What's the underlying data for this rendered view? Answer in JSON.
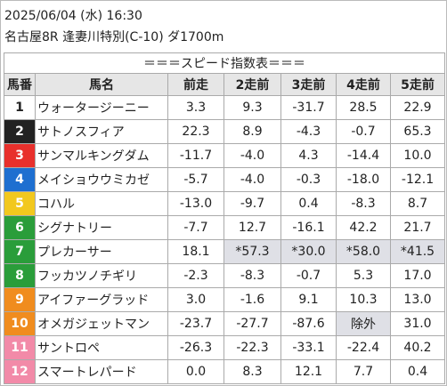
{
  "header": {
    "date": "2025/06/04 (水) 16:30",
    "race": "名古屋8R 逢妻川特別(C-10) ダ1700m"
  },
  "table": {
    "title": "＝＝＝スピード指数表＝＝＝",
    "columns": [
      "馬番",
      "馬名",
      "前走",
      "2走前",
      "3走前",
      "4走前",
      "5走前"
    ],
    "rows": [
      [
        "1",
        "ウォータージーニー",
        "3.3",
        "9.3",
        "-31.7",
        "28.5",
        "22.9"
      ],
      [
        "2",
        "サトノスフィア",
        "22.3",
        "8.9",
        "-4.3",
        "-0.7",
        "65.3"
      ],
      [
        "3",
        "サンマルキングダム",
        "-11.7",
        "-4.0",
        "4.3",
        "-14.4",
        "10.0"
      ],
      [
        "4",
        "メイショウウミカゼ",
        "-5.7",
        "-4.0",
        "-0.3",
        "-18.0",
        "-12.1"
      ],
      [
        "5",
        "コハル",
        "-13.0",
        "-9.7",
        "0.4",
        "-8.3",
        "8.7"
      ],
      [
        "6",
        "シグナトリー",
        "-7.7",
        "12.7",
        "-16.1",
        "42.2",
        "21.7"
      ],
      [
        "7",
        "プレカーサー",
        "18.1",
        "*57.3",
        "*30.0",
        "*58.0",
        "*41.5"
      ],
      [
        "8",
        "フッカツノチギリ",
        "-2.3",
        "-8.3",
        "-0.7",
        "5.3",
        "17.0"
      ],
      [
        "9",
        "アイファーグラッド",
        "3.0",
        "-1.6",
        "9.1",
        "10.3",
        "13.0"
      ],
      [
        "10",
        "オメガジェットマン",
        "-23.7",
        "-27.7",
        "-87.6",
        "除外",
        "31.0"
      ],
      [
        "11",
        "サントロペ",
        "-26.3",
        "-22.3",
        "-33.1",
        "-22.4",
        "40.2"
      ],
      [
        "12",
        "スマートレパード",
        "0.0",
        "8.3",
        "12.1",
        "7.7",
        "0.4"
      ]
    ]
  }
}
